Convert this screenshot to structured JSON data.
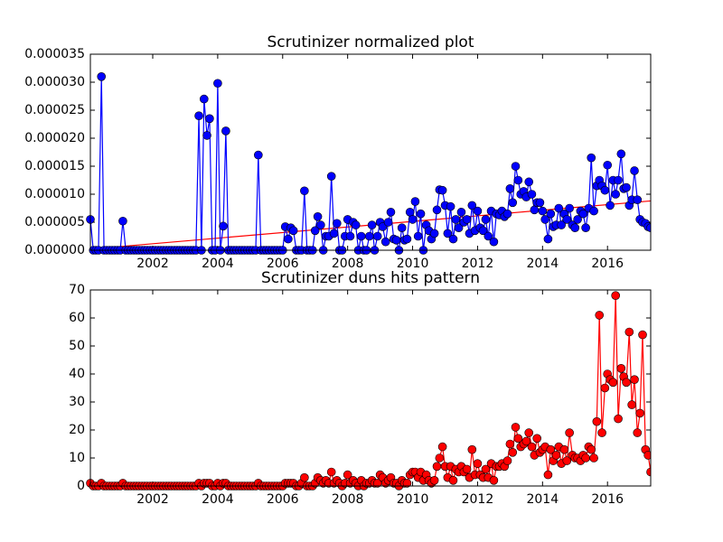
{
  "chart_data": [
    {
      "type": "line",
      "title": "Scrutinizer normalized plot",
      "xlim": [
        2000.08,
        2017.33
      ],
      "xticks": [
        2002,
        2004,
        2006,
        2008,
        2010,
        2012,
        2014,
        2016
      ],
      "ylim": [
        0,
        3.5e-05
      ],
      "yticks": [
        {
          "value": 0,
          "label": "0.000000"
        },
        {
          "value": 5e-06,
          "label": "0.000005"
        },
        {
          "value": 1e-05,
          "label": "0.000010"
        },
        {
          "value": 1.5e-05,
          "label": "0.000015"
        },
        {
          "value": 2e-05,
          "label": "0.000020"
        },
        {
          "value": 2.5e-05,
          "label": "0.000025"
        },
        {
          "value": 3e-05,
          "label": "0.000030"
        },
        {
          "value": 3.5e-05,
          "label": "0.000035"
        }
      ],
      "x": [
        2000.08,
        2000.17,
        2000.25,
        2000.33,
        2000.42,
        2000.5,
        2000.58,
        2000.67,
        2000.75,
        2000.83,
        2000.92,
        2001,
        2001.08,
        2001.17,
        2001.25,
        2001.33,
        2001.42,
        2001.5,
        2001.58,
        2001.67,
        2001.75,
        2001.83,
        2001.92,
        2002,
        2002.08,
        2002.17,
        2002.25,
        2002.33,
        2002.42,
        2002.5,
        2002.58,
        2002.67,
        2002.75,
        2002.83,
        2002.92,
        2003,
        2003.08,
        2003.17,
        2003.25,
        2003.33,
        2003.42,
        2003.5,
        2003.58,
        2003.67,
        2003.75,
        2003.83,
        2003.92,
        2004,
        2004.08,
        2004.17,
        2004.25,
        2004.33,
        2004.42,
        2004.5,
        2004.58,
        2004.67,
        2004.75,
        2004.83,
        2004.92,
        2005,
        2005.08,
        2005.17,
        2005.25,
        2005.33,
        2005.42,
        2005.5,
        2005.58,
        2005.67,
        2005.75,
        2005.83,
        2005.92,
        2006,
        2006.08,
        2006.17,
        2006.25,
        2006.33,
        2006.42,
        2006.5,
        2006.58,
        2006.67,
        2006.75,
        2006.83,
        2006.92,
        2007,
        2007.08,
        2007.17,
        2007.25,
        2007.33,
        2007.42,
        2007.5,
        2007.58,
        2007.67,
        2007.75,
        2007.83,
        2007.92,
        2008,
        2008.08,
        2008.17,
        2008.25,
        2008.33,
        2008.42,
        2008.5,
        2008.58,
        2008.67,
        2008.75,
        2008.83,
        2008.92,
        2009,
        2009.08,
        2009.17,
        2009.25,
        2009.33,
        2009.42,
        2009.5,
        2009.58,
        2009.67,
        2009.75,
        2009.83,
        2009.92,
        2010,
        2010.08,
        2010.17,
        2010.25,
        2010.33,
        2010.42,
        2010.5,
        2010.58,
        2010.67,
        2010.75,
        2010.83,
        2010.92,
        2011,
        2011.08,
        2011.17,
        2011.25,
        2011.33,
        2011.42,
        2011.5,
        2011.58,
        2011.67,
        2011.75,
        2011.83,
        2011.92,
        2012,
        2012.08,
        2012.17,
        2012.25,
        2012.33,
        2012.42,
        2012.5,
        2012.58,
        2012.67,
        2012.75,
        2012.83,
        2012.92,
        2013,
        2013.08,
        2013.17,
        2013.25,
        2013.33,
        2013.42,
        2013.5,
        2013.58,
        2013.67,
        2013.75,
        2013.83,
        2013.92,
        2014,
        2014.08,
        2014.17,
        2014.25,
        2014.33,
        2014.42,
        2014.5,
        2014.58,
        2014.67,
        2014.75,
        2014.83,
        2014.92,
        2015,
        2015.08,
        2015.17,
        2015.25,
        2015.33,
        2015.42,
        2015.5,
        2015.58,
        2015.67,
        2015.75,
        2015.83,
        2015.92,
        2016,
        2016.08,
        2016.17,
        2016.25,
        2016.33,
        2016.42,
        2016.5,
        2016.58,
        2016.67,
        2016.75,
        2016.83,
        2016.92,
        2017,
        2017.08,
        2017.17,
        2017.25,
        2017.33
      ],
      "series": [
        {
          "color": "#0000ff",
          "values": [
            5.5e-06,
            0,
            0,
            0,
            3.1e-05,
            0,
            0,
            0,
            0,
            0,
            0,
            0,
            5.2e-06,
            0,
            0,
            0,
            0,
            0,
            0,
            0,
            0,
            0,
            0,
            0,
            0,
            0,
            0,
            0,
            0,
            0,
            0,
            0,
            0,
            0,
            0,
            0,
            0,
            0,
            0,
            0,
            2.4e-05,
            0,
            2.7e-05,
            2.05e-05,
            2.35e-05,
            0,
            0,
            2.98e-05,
            0,
            4.3e-06,
            2.13e-05,
            0,
            0,
            0,
            0,
            0,
            0,
            0,
            0,
            0,
            0,
            0,
            1.7e-05,
            0,
            0,
            0,
            0,
            0,
            0,
            0,
            0,
            0,
            4.2e-06,
            2e-06,
            4e-06,
            3.5e-06,
            0,
            0,
            0,
            1.06e-05,
            0,
            0,
            0,
            3.5e-06,
            6e-06,
            4.5e-06,
            0,
            2.5e-06,
            2.5e-06,
            1.32e-05,
            3e-06,
            4.8e-06,
            0,
            0,
            2.5e-06,
            5.5e-06,
            2.5e-06,
            5e-06,
            4.5e-06,
            0,
            2.5e-06,
            0,
            0,
            2.5e-06,
            4.5e-06,
            0,
            2.5e-06,
            5e-06,
            4.2e-06,
            1.5e-06,
            5e-06,
            6.8e-06,
            2e-06,
            1.8e-06,
            0,
            4e-06,
            1.8e-06,
            2e-06,
            6.8e-06,
            5.5e-06,
            8.7e-06,
            2.5e-06,
            6.5e-06,
            0,
            4.5e-06,
            3.5e-06,
            2e-06,
            3e-06,
            7.2e-06,
            1.08e-05,
            1.07e-05,
            8e-06,
            3e-06,
            7.8e-06,
            2e-06,
            5.5e-06,
            4e-06,
            6.8e-06,
            5e-06,
            5.5e-06,
            3e-06,
            8e-06,
            3.5e-06,
            7e-06,
            4e-06,
            3.5e-06,
            5.5e-06,
            2.5e-06,
            7e-06,
            1.5e-06,
            6.5e-06,
            6.3e-06,
            7e-06,
            6e-06,
            6.5e-06,
            1.1e-05,
            8.5e-06,
            1.5e-05,
            1.25e-05,
            1e-05,
            1.05e-05,
            9.5e-06,
            1.22e-05,
            1e-05,
            7.2e-06,
            8.5e-06,
            8.5e-06,
            7e-06,
            5.5e-06,
            2e-06,
            6.5e-06,
            4.2e-06,
            4.5e-06,
            7.5e-06,
            4.5e-06,
            6.5e-06,
            5.5e-06,
            7.5e-06,
            4.5e-06,
            4e-06,
            5.5e-06,
            7e-06,
            6.5e-06,
            4e-06,
            7.5e-06,
            1.65e-05,
            7e-06,
            1.15e-05,
            1.25e-05,
            1.15e-05,
            1.07e-05,
            1.52e-05,
            8e-06,
            1.25e-05,
            1e-05,
            1.25e-05,
            1.72e-05,
            1.1e-05,
            1.12e-05,
            8e-06,
            9e-06,
            1.42e-05,
            9e-06,
            5.5e-06,
            5e-06,
            4.8e-06,
            4.2e-06,
            4e-06
          ]
        }
      ],
      "trend": {
        "color": "#ff0000",
        "x": [
          2000.08,
          2017.33
        ],
        "values": [
          2e-07,
          8.8e-06
        ]
      }
    },
    {
      "type": "line",
      "title": "Scrutinizer duns hits pattern",
      "xlim": [
        2000.08,
        2017.33
      ],
      "xticks": [
        2002,
        2004,
        2006,
        2008,
        2010,
        2012,
        2014,
        2016
      ],
      "ylim": [
        0,
        70
      ],
      "yticks": [
        0,
        10,
        20,
        30,
        40,
        50,
        60,
        70
      ],
      "x": [
        2000.08,
        2000.17,
        2000.25,
        2000.33,
        2000.42,
        2000.5,
        2000.58,
        2000.67,
        2000.75,
        2000.83,
        2000.92,
        2001,
        2001.08,
        2001.17,
        2001.25,
        2001.33,
        2001.42,
        2001.5,
        2001.58,
        2001.67,
        2001.75,
        2001.83,
        2001.92,
        2002,
        2002.08,
        2002.17,
        2002.25,
        2002.33,
        2002.42,
        2002.5,
        2002.58,
        2002.67,
        2002.75,
        2002.83,
        2002.92,
        2003,
        2003.08,
        2003.17,
        2003.25,
        2003.33,
        2003.42,
        2003.5,
        2003.58,
        2003.67,
        2003.75,
        2003.83,
        2003.92,
        2004,
        2004.08,
        2004.17,
        2004.25,
        2004.33,
        2004.42,
        2004.5,
        2004.58,
        2004.67,
        2004.75,
        2004.83,
        2004.92,
        2005,
        2005.08,
        2005.17,
        2005.25,
        2005.33,
        2005.42,
        2005.5,
        2005.58,
        2005.67,
        2005.75,
        2005.83,
        2005.92,
        2006,
        2006.08,
        2006.17,
        2006.25,
        2006.33,
        2006.42,
        2006.5,
        2006.58,
        2006.67,
        2006.75,
        2006.83,
        2006.92,
        2007,
        2007.08,
        2007.17,
        2007.25,
        2007.33,
        2007.42,
        2007.5,
        2007.58,
        2007.67,
        2007.75,
        2007.83,
        2007.92,
        2008,
        2008.08,
        2008.17,
        2008.25,
        2008.33,
        2008.42,
        2008.5,
        2008.58,
        2008.67,
        2008.75,
        2008.83,
        2008.92,
        2009,
        2009.08,
        2009.17,
        2009.25,
        2009.33,
        2009.42,
        2009.5,
        2009.58,
        2009.67,
        2009.75,
        2009.83,
        2009.92,
        2010,
        2010.08,
        2010.17,
        2010.25,
        2010.33,
        2010.42,
        2010.5,
        2010.58,
        2010.67,
        2010.75,
        2010.83,
        2010.92,
        2011,
        2011.08,
        2011.17,
        2011.25,
        2011.33,
        2011.42,
        2011.5,
        2011.58,
        2011.67,
        2011.75,
        2011.83,
        2011.92,
        2012,
        2012.08,
        2012.17,
        2012.25,
        2012.33,
        2012.42,
        2012.5,
        2012.58,
        2012.67,
        2012.75,
        2012.83,
        2012.92,
        2013,
        2013.08,
        2013.17,
        2013.25,
        2013.33,
        2013.42,
        2013.5,
        2013.58,
        2013.67,
        2013.75,
        2013.83,
        2013.92,
        2014,
        2014.08,
        2014.17,
        2014.25,
        2014.33,
        2014.42,
        2014.5,
        2014.58,
        2014.67,
        2014.75,
        2014.83,
        2014.92,
        2015,
        2015.08,
        2015.17,
        2015.25,
        2015.33,
        2015.42,
        2015.5,
        2015.58,
        2015.67,
        2015.75,
        2015.83,
        2015.92,
        2016,
        2016.08,
        2016.17,
        2016.25,
        2016.33,
        2016.42,
        2016.5,
        2016.58,
        2016.67,
        2016.75,
        2016.83,
        2016.92,
        2017,
        2017.08,
        2017.17,
        2017.25,
        2017.33
      ],
      "series": [
        {
          "color": "#ff0000",
          "values": [
            1,
            0,
            0,
            0,
            1,
            0,
            0,
            0,
            0,
            0,
            0,
            0,
            1,
            0,
            0,
            0,
            0,
            0,
            0,
            0,
            0,
            0,
            0,
            0,
            0,
            0,
            0,
            0,
            0,
            0,
            0,
            0,
            0,
            0,
            0,
            0,
            0,
            0,
            0,
            0,
            1,
            0,
            1,
            1,
            1,
            0,
            0,
            1,
            0,
            1,
            1,
            0,
            0,
            0,
            0,
            0,
            0,
            0,
            0,
            0,
            0,
            0,
            1,
            0,
            0,
            0,
            0,
            0,
            0,
            0,
            0,
            0,
            1,
            1,
            1,
            1,
            0,
            0,
            1,
            3,
            0,
            0,
            0,
            1,
            3,
            2,
            1,
            2,
            1,
            5,
            1,
            2,
            1,
            0,
            1,
            4,
            1,
            2,
            1,
            0,
            2,
            0,
            1,
            1,
            2,
            1,
            1,
            4,
            3,
            1,
            2,
            3,
            1,
            1,
            0,
            2,
            1,
            1,
            4,
            5,
            5,
            3,
            5,
            2,
            4,
            2,
            1,
            2,
            7,
            10,
            14,
            7,
            3,
            7,
            2,
            6,
            5,
            7,
            5,
            6,
            3,
            13,
            4,
            8,
            4,
            3,
            6,
            3,
            8,
            2,
            7,
            7,
            8,
            7,
            9,
            15,
            12,
            21,
            17,
            14,
            15,
            16,
            19,
            14,
            11,
            17,
            12,
            13,
            14,
            4,
            13,
            9,
            11,
            14,
            8,
            13,
            9,
            19,
            11,
            10,
            10,
            9,
            11,
            10,
            14,
            13,
            10,
            23,
            61,
            19,
            35,
            40,
            38,
            37,
            68,
            24,
            42,
            39,
            37,
            55,
            29,
            38,
            19,
            26,
            54,
            13,
            11,
            5
          ]
        }
      ]
    }
  ]
}
